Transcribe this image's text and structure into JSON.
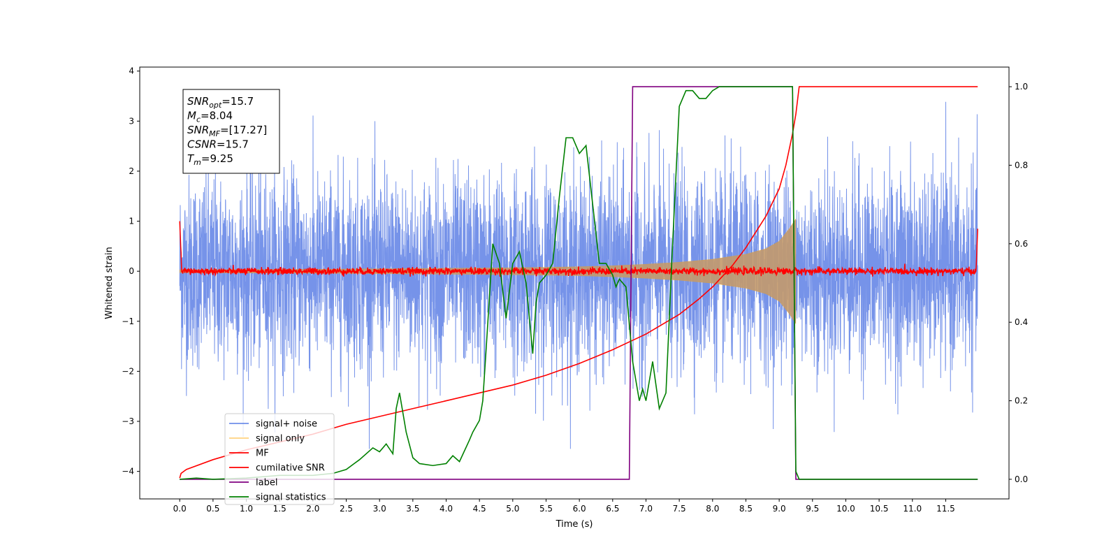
{
  "chart_data": {
    "type": "line",
    "title": "",
    "xlabel": "Time (s)",
    "ylabel": "Whitened strain",
    "xlim": [
      -0.6,
      12.45
    ],
    "ylim": [
      -4.55,
      4.08
    ],
    "y2lim": [
      -0.05,
      1.05
    ],
    "xticks": [
      0.0,
      0.5,
      1.0,
      1.5,
      2.0,
      2.5,
      3.0,
      3.5,
      4.0,
      4.5,
      5.0,
      5.5,
      6.0,
      6.5,
      7.0,
      7.5,
      8.0,
      8.5,
      9.0,
      9.5,
      10.0,
      10.5,
      11.0,
      11.5
    ],
    "xtick_labels": [
      "0.0",
      "0.5",
      "1.0",
      "1.5",
      "2.0",
      "2.5",
      "3.0",
      "3.5",
      "4.0",
      "4.5",
      "5.0",
      "5.5",
      "6.0",
      "6.5",
      "7.0",
      "7.5",
      "8.0",
      "8.5",
      "9.0",
      "9.5",
      "10.0",
      "10.5",
      "11.0",
      "11.5"
    ],
    "yticks": [
      -4,
      -3,
      -2,
      -1,
      0,
      1,
      2,
      3,
      4
    ],
    "ytick_labels": [
      "−4",
      "−3",
      "−2",
      "−1",
      "0",
      "1",
      "2",
      "3",
      "4"
    ],
    "y2ticks": [
      0.0,
      0.2,
      0.4,
      0.6,
      0.8,
      1.0
    ],
    "y2tick_labels": [
      "0.0",
      "0.2",
      "0.4",
      "0.6",
      "0.8",
      "1.0"
    ],
    "grid": false,
    "legend_position": "lower-left",
    "annotation_box": {
      "lines": [
        {
          "main": "SNR",
          "sub": "opt",
          "value": "=15.7"
        },
        {
          "main": "M",
          "sub": "c",
          "value": "=8.04"
        },
        {
          "main": "SNR",
          "sub": "MF",
          "value": "=[17.27]"
        },
        {
          "main": "CSNR",
          "sub": "",
          "value": "=15.7"
        },
        {
          "main": "T",
          "sub": "m",
          "value": "=9.25"
        }
      ]
    },
    "series": [
      {
        "name": "signal+ noise",
        "color": "#4169e1",
        "axis": "left",
        "style": "noise",
        "x_range": [
          0.0,
          11.98
        ],
        "amplitude_std": 0.95,
        "extremes": {
          "max": 3.7,
          "min": -3.55
        }
      },
      {
        "name": "signal only",
        "color": "#ffa500",
        "axis": "left",
        "style": "chirp",
        "x_range": [
          0.0,
          9.25
        ],
        "envelope": [
          [
            0.0,
            0.03
          ],
          [
            2.0,
            0.04
          ],
          [
            4.0,
            0.06
          ],
          [
            5.0,
            0.07
          ],
          [
            6.0,
            0.09
          ],
          [
            6.5,
            0.11
          ],
          [
            7.0,
            0.14
          ],
          [
            7.5,
            0.18
          ],
          [
            8.0,
            0.24
          ],
          [
            8.5,
            0.34
          ],
          [
            8.8,
            0.45
          ],
          [
            9.0,
            0.6
          ],
          [
            9.15,
            0.85
          ],
          [
            9.25,
            1.05
          ]
        ]
      },
      {
        "name": "MF",
        "color": "#ff0000",
        "axis": "left",
        "style": "mf",
        "x_range": [
          0.0,
          11.98
        ],
        "endpoints": {
          "start": 1.0,
          "end": 0.85
        },
        "noise_std": 0.035
      },
      {
        "name": "cumilative SNR",
        "color": "#ff0000",
        "axis": "right",
        "style": "line",
        "x": [
          0.0,
          0.02,
          0.1,
          0.5,
          1.0,
          1.5,
          2.0,
          2.5,
          3.0,
          3.5,
          4.0,
          4.5,
          5.0,
          5.5,
          6.0,
          6.5,
          7.0,
          7.5,
          7.8,
          8.0,
          8.3,
          8.5,
          8.8,
          9.0,
          9.1,
          9.2,
          9.25,
          9.3,
          11.98
        ],
        "values": [
          0.003,
          0.015,
          0.025,
          0.05,
          0.075,
          0.095,
          0.115,
          0.14,
          0.16,
          0.18,
          0.2,
          0.22,
          0.24,
          0.265,
          0.295,
          0.33,
          0.37,
          0.42,
          0.46,
          0.49,
          0.545,
          0.59,
          0.67,
          0.74,
          0.8,
          0.88,
          0.93,
          1.0,
          1.0
        ]
      },
      {
        "name": "label",
        "color": "#800080",
        "axis": "right",
        "style": "line",
        "x": [
          0.0,
          6.75,
          6.8,
          9.2,
          9.25,
          11.98
        ],
        "values": [
          0.0,
          0.0,
          1.0,
          1.0,
          0.0,
          0.0
        ]
      },
      {
        "name": "signal statistics",
        "color": "#008000",
        "axis": "right",
        "style": "line",
        "x": [
          0.0,
          0.25,
          0.5,
          1.0,
          1.5,
          2.0,
          2.3,
          2.5,
          2.7,
          2.9,
          3.0,
          3.1,
          3.2,
          3.25,
          3.3,
          3.4,
          3.5,
          3.6,
          3.8,
          4.0,
          4.1,
          4.2,
          4.35,
          4.4,
          4.5,
          4.55,
          4.6,
          4.7,
          4.8,
          4.9,
          5.0,
          5.1,
          5.2,
          5.3,
          5.35,
          5.4,
          5.5,
          5.6,
          5.7,
          5.8,
          5.9,
          6.0,
          6.1,
          6.2,
          6.3,
          6.4,
          6.5,
          6.55,
          6.6,
          6.7,
          6.8,
          6.9,
          6.95,
          7.0,
          7.1,
          7.2,
          7.3,
          7.4,
          7.5,
          7.6,
          7.7,
          7.8,
          7.9,
          8.0,
          8.1,
          8.2,
          8.5,
          9.0,
          9.2,
          9.25,
          9.3,
          11.98
        ],
        "values": [
          0.0,
          0.003,
          0.0,
          0.003,
          0.01,
          0.01,
          0.015,
          0.025,
          0.05,
          0.08,
          0.07,
          0.09,
          0.065,
          0.18,
          0.22,
          0.12,
          0.055,
          0.04,
          0.035,
          0.04,
          0.06,
          0.045,
          0.1,
          0.12,
          0.15,
          0.2,
          0.33,
          0.6,
          0.55,
          0.41,
          0.55,
          0.58,
          0.5,
          0.32,
          0.45,
          0.5,
          0.52,
          0.55,
          0.72,
          0.87,
          0.87,
          0.83,
          0.85,
          0.7,
          0.55,
          0.55,
          0.52,
          0.49,
          0.51,
          0.49,
          0.3,
          0.2,
          0.23,
          0.2,
          0.3,
          0.18,
          0.22,
          0.6,
          0.95,
          0.99,
          0.99,
          0.97,
          0.97,
          0.99,
          1.0,
          1.0,
          1.0,
          1.0,
          1.0,
          0.02,
          0.0,
          0.0
        ]
      }
    ]
  }
}
